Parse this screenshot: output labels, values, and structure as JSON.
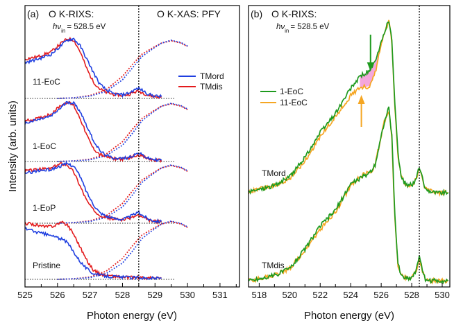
{
  "chart_data": [
    {
      "panel": "(a)",
      "type": "line",
      "title_left": "O K-RIXS:",
      "excitation": {
        "symbol": "hν",
        "subscript": "in",
        "value": "= 528.5 eV"
      },
      "title_right": "O K-XAS: PFY",
      "xlabel": "Photon energy (eV)",
      "ylabel": "Intensity (arb. units)",
      "xlim": [
        525.0,
        531.6
      ],
      "xticks": [
        "525",
        "526",
        "527",
        "528",
        "529",
        "530",
        "531"
      ],
      "vline_x": 528.5,
      "legend": {
        "position": "center-right",
        "entries": [
          {
            "label": "TMord",
            "color": "#1f3fe0"
          },
          {
            "label": "TMdis",
            "color": "#e31a1c"
          }
        ]
      },
      "curve_labels": [
        "11-EoC",
        "1-EoC",
        "1-EoP",
        "Pristine"
      ],
      "groups": [
        {
          "label": "11-EoC",
          "rixs": {
            "x": [
              525.0,
              525.4,
              525.8,
              526.1,
              526.3,
              526.5,
              526.7,
              526.9,
              527.1,
              527.3,
              527.5,
              527.7,
              528.0,
              528.2,
              528.4,
              528.5,
              528.6,
              528.8,
              529.0,
              529.2
            ],
            "TMord": [
              0.6,
              0.66,
              0.74,
              0.88,
              0.98,
              1.0,
              0.88,
              0.66,
              0.44,
              0.24,
              0.14,
              0.08,
              0.06,
              0.09,
              0.15,
              0.17,
              0.14,
              0.07,
              0.04,
              0.03
            ],
            "TMdis": [
              0.66,
              0.7,
              0.78,
              0.92,
              1.0,
              0.98,
              0.78,
              0.5,
              0.28,
              0.16,
              0.1,
              0.07,
              0.05,
              0.07,
              0.11,
              0.12,
              0.1,
              0.05,
              0.03,
              0.02
            ]
          },
          "xas": {
            "x": [
              526.0,
              526.5,
              527.0,
              527.5,
              528.0,
              528.3,
              528.6,
              528.9,
              529.2,
              529.5,
              529.8,
              530.0
            ],
            "TMord": [
              0.0,
              0.01,
              0.04,
              0.12,
              0.32,
              0.52,
              0.72,
              0.84,
              0.95,
              1.0,
              0.96,
              0.9
            ],
            "TMdis": [
              0.0,
              0.01,
              0.05,
              0.15,
              0.38,
              0.58,
              0.76,
              0.86,
              0.95,
              0.99,
              0.95,
              0.89
            ]
          }
        },
        {
          "label": "1-EoC",
          "rixs": {
            "x": [
              525.0,
              525.4,
              525.8,
              526.1,
              526.3,
              526.5,
              526.7,
              526.9,
              527.1,
              527.3,
              527.5,
              527.7,
              528.0,
              528.2,
              528.4,
              528.5,
              528.6,
              528.8,
              529.0,
              529.2
            ],
            "TMord": [
              0.64,
              0.7,
              0.76,
              0.9,
              1.0,
              0.98,
              0.84,
              0.6,
              0.36,
              0.18,
              0.1,
              0.06,
              0.05,
              0.07,
              0.12,
              0.14,
              0.11,
              0.05,
              0.03,
              0.02
            ],
            "TMdis": [
              0.68,
              0.72,
              0.8,
              0.94,
              1.0,
              0.94,
              0.72,
              0.44,
              0.22,
              0.12,
              0.08,
              0.05,
              0.04,
              0.06,
              0.1,
              0.11,
              0.09,
              0.04,
              0.02,
              0.02
            ]
          },
          "xas": {
            "x": [
              526.0,
              526.5,
              527.0,
              527.5,
              528.0,
              528.3,
              528.6,
              528.9,
              529.2,
              529.5,
              529.8,
              530.0
            ],
            "TMord": [
              0.0,
              0.01,
              0.03,
              0.1,
              0.28,
              0.48,
              0.7,
              0.83,
              0.95,
              1.0,
              0.96,
              0.9
            ],
            "TMdis": [
              0.0,
              0.01,
              0.04,
              0.13,
              0.34,
              0.55,
              0.74,
              0.85,
              0.95,
              0.99,
              0.95,
              0.89
            ]
          }
        },
        {
          "label": "1-EoP",
          "rixs": {
            "x": [
              525.0,
              525.4,
              525.8,
              526.1,
              526.3,
              526.5,
              526.7,
              526.9,
              527.1,
              527.3,
              527.5,
              527.7,
              528.0,
              528.2,
              528.4,
              528.5,
              528.6,
              528.8,
              529.0,
              529.2
            ],
            "TMord": [
              0.84,
              0.88,
              0.9,
              0.96,
              1.0,
              0.96,
              0.78,
              0.52,
              0.32,
              0.18,
              0.12,
              0.08,
              0.07,
              0.1,
              0.16,
              0.18,
              0.14,
              0.07,
              0.04,
              0.03
            ],
            "TMdis": [
              0.88,
              0.9,
              0.92,
              1.0,
              0.98,
              0.86,
              0.62,
              0.38,
              0.22,
              0.14,
              0.1,
              0.07,
              0.06,
              0.08,
              0.12,
              0.13,
              0.1,
              0.05,
              0.03,
              0.02
            ]
          },
          "xas": {
            "x": [
              526.0,
              526.5,
              527.0,
              527.5,
              528.0,
              528.3,
              528.6,
              528.9,
              529.2,
              529.5,
              529.8,
              530.0
            ],
            "TMord": [
              0.0,
              0.01,
              0.03,
              0.1,
              0.28,
              0.48,
              0.7,
              0.83,
              0.95,
              1.0,
              0.96,
              0.9
            ],
            "TMdis": [
              0.0,
              0.01,
              0.04,
              0.13,
              0.34,
              0.55,
              0.74,
              0.85,
              0.95,
              0.99,
              0.95,
              0.89
            ]
          }
        },
        {
          "label": "Pristine",
          "rixs": {
            "x": [
              525.0,
              525.3,
              525.6,
              525.9,
              526.1,
              526.3,
              526.5,
              526.7,
              526.9,
              527.1,
              527.3,
              527.6,
              527.9,
              528.2,
              528.5,
              528.8,
              529.0,
              529.2
            ],
            "TMord": [
              0.86,
              0.8,
              0.76,
              0.72,
              0.68,
              0.62,
              0.46,
              0.3,
              0.18,
              0.1,
              0.07,
              0.05,
              0.04,
              0.03,
              0.03,
              0.02,
              0.02,
              0.02
            ],
            "TMdis": [
              0.94,
              0.92,
              0.88,
              0.9,
              0.96,
              0.92,
              0.76,
              0.54,
              0.32,
              0.16,
              0.09,
              0.06,
              0.04,
              0.03,
              0.03,
              0.02,
              0.02,
              0.02
            ]
          },
          "xas": {
            "x": [
              526.0,
              526.5,
              527.0,
              527.5,
              528.0,
              528.3,
              528.6,
              528.9,
              529.2,
              529.5,
              529.8,
              530.0
            ],
            "TMord": [
              0.0,
              0.01,
              0.03,
              0.1,
              0.28,
              0.48,
              0.7,
              0.83,
              0.95,
              1.0,
              0.96,
              0.9
            ],
            "TMdis": [
              0.0,
              0.01,
              0.04,
              0.14,
              0.36,
              0.57,
              0.76,
              0.86,
              0.95,
              0.99,
              0.95,
              0.89
            ]
          }
        }
      ]
    },
    {
      "panel": "(b)",
      "type": "line",
      "title_left": "O K-RIXS:",
      "excitation": {
        "symbol": "hν",
        "subscript": "in",
        "value": "= 528.5 eV"
      },
      "xlabel": "Photon energy (eV)",
      "xlim": [
        517.3,
        530.5
      ],
      "xticks": [
        "518",
        "520",
        "522",
        "524",
        "526",
        "528",
        "530"
      ],
      "vline_x": 528.5,
      "legend": {
        "position": "upper-left",
        "entries": [
          {
            "label": "1-EoC",
            "color": "#1e9a1e"
          },
          {
            "label": "11-EoC",
            "color": "#f5a623"
          }
        ]
      },
      "curve_labels": [
        "TMord",
        "TMdis"
      ],
      "difference_fill_color": "#f4a6dc",
      "arrows": [
        {
          "x": 525.3,
          "direction": "down",
          "color": "#1e9a1e"
        },
        {
          "x": 524.7,
          "direction": "up",
          "color": "#f5a623"
        }
      ],
      "groups": [
        {
          "label": "TMord",
          "x": [
            517.3,
            518.0,
            519.0,
            520.0,
            521.0,
            522.0,
            523.0,
            524.0,
            524.6,
            525.0,
            525.3,
            525.6,
            525.9,
            526.2,
            526.5,
            526.7,
            526.9,
            527.1,
            527.3,
            527.5,
            527.8,
            528.1,
            528.3,
            528.5,
            528.7,
            528.9,
            529.2,
            529.6,
            530.0,
            530.4
          ],
          "EoC_1": [
            0.02,
            0.04,
            0.06,
            0.11,
            0.22,
            0.36,
            0.47,
            0.61,
            0.68,
            0.7,
            0.72,
            0.76,
            0.84,
            0.93,
            1.0,
            0.88,
            0.52,
            0.24,
            0.12,
            0.08,
            0.06,
            0.07,
            0.1,
            0.17,
            0.1,
            0.04,
            0.03,
            0.02,
            0.02,
            0.02
          ],
          "EoC_11": [
            0.02,
            0.04,
            0.06,
            0.1,
            0.2,
            0.34,
            0.45,
            0.57,
            0.62,
            0.62,
            0.63,
            0.7,
            0.82,
            0.92,
            1.0,
            0.86,
            0.5,
            0.23,
            0.11,
            0.08,
            0.06,
            0.07,
            0.1,
            0.16,
            0.09,
            0.04,
            0.03,
            0.02,
            0.02,
            0.02
          ]
        },
        {
          "label": "TMdis",
          "x": [
            517.3,
            518.0,
            519.0,
            520.0,
            521.0,
            522.0,
            523.0,
            524.0,
            524.6,
            525.0,
            525.3,
            525.6,
            525.9,
            526.2,
            526.5,
            526.7,
            526.9,
            527.1,
            527.3,
            527.5,
            527.8,
            528.1,
            528.3,
            528.5,
            528.7,
            528.9,
            529.2,
            529.6,
            530.0,
            530.4
          ],
          "EoC_1": [
            0.02,
            0.03,
            0.05,
            0.09,
            0.2,
            0.33,
            0.42,
            0.57,
            0.6,
            0.62,
            0.64,
            0.68,
            0.8,
            0.92,
            1.0,
            0.84,
            0.38,
            0.12,
            0.05,
            0.04,
            0.03,
            0.05,
            0.08,
            0.17,
            0.07,
            0.03,
            0.02,
            0.02,
            0.02,
            0.02
          ],
          "EoC_11": [
            0.02,
            0.03,
            0.05,
            0.09,
            0.19,
            0.31,
            0.41,
            0.56,
            0.61,
            0.63,
            0.63,
            0.68,
            0.8,
            0.92,
            0.99,
            0.82,
            0.36,
            0.11,
            0.05,
            0.04,
            0.03,
            0.05,
            0.08,
            0.15,
            0.07,
            0.03,
            0.02,
            0.02,
            0.02,
            0.02
          ]
        }
      ]
    }
  ]
}
